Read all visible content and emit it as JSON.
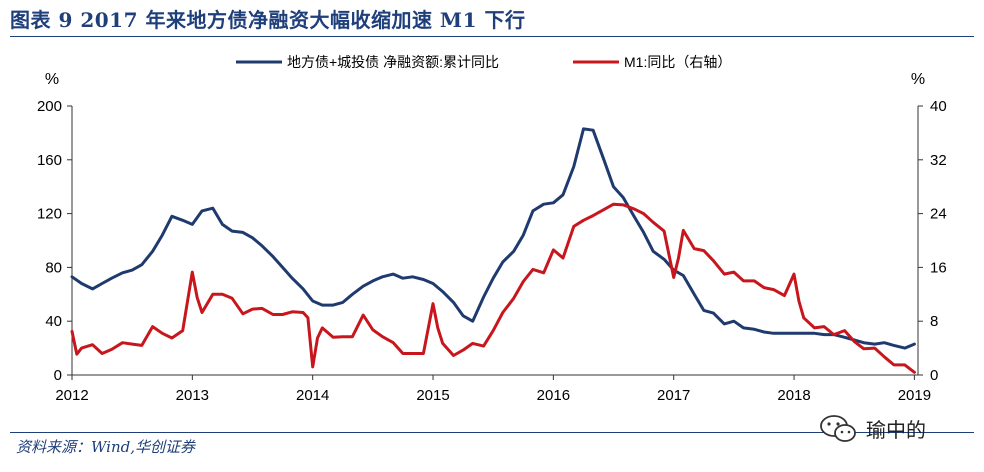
{
  "header": {
    "title": "图表 9   2017 年来地方债净融资大幅收缩加速 M1 下行"
  },
  "footer": {
    "source": "资料来源：Wind,华创证券",
    "watermark_text": "瑜中的"
  },
  "chart_data": {
    "type": "line",
    "title": "图表 9   2017 年来地方债净融资大幅收缩加速 M1 下行",
    "left_unit": "%",
    "right_unit": "%",
    "x_range": [
      2012,
      2019.03
    ],
    "x_ticks": [
      "2012",
      "2013",
      "2014",
      "2015",
      "2016",
      "2017",
      "2018",
      "2019"
    ],
    "y_left": {
      "ticks": [
        "0",
        "40",
        "80",
        "120",
        "160",
        "200"
      ],
      "lim": [
        0,
        200
      ]
    },
    "y_right": {
      "ticks": [
        "0",
        "8",
        "16",
        "24",
        "32",
        "40"
      ],
      "lim": [
        0,
        40
      ]
    },
    "legend_position": "top",
    "series": [
      {
        "name": "地方债+城投债 净融资额:累计同比",
        "color": "#1f3a6e",
        "axis": "left",
        "x": [
          2012.0,
          2012.08,
          2012.17,
          2012.25,
          2012.33,
          2012.42,
          2012.5,
          2012.58,
          2012.67,
          2012.75,
          2012.83,
          2012.92,
          2013.0,
          2013.08,
          2013.17,
          2013.25,
          2013.33,
          2013.42,
          2013.5,
          2013.58,
          2013.67,
          2013.75,
          2013.83,
          2013.92,
          2014.0,
          2014.08,
          2014.17,
          2014.25,
          2014.33,
          2014.42,
          2014.5,
          2014.58,
          2014.67,
          2014.75,
          2014.83,
          2014.92,
          2015.0,
          2015.08,
          2015.17,
          2015.25,
          2015.33,
          2015.42,
          2015.5,
          2015.58,
          2015.67,
          2015.75,
          2015.83,
          2015.92,
          2016.0,
          2016.08,
          2016.17,
          2016.25,
          2016.33,
          2016.42,
          2016.5,
          2016.58,
          2016.67,
          2016.75,
          2016.83,
          2016.92,
          2017.0,
          2017.08,
          2017.17,
          2017.25,
          2017.33,
          2017.42,
          2017.5,
          2017.58,
          2017.67,
          2017.75,
          2017.83,
          2017.92,
          2018.0,
          2018.08,
          2018.17,
          2018.25,
          2018.33,
          2018.42,
          2018.5,
          2018.58,
          2018.67,
          2018.75,
          2018.83,
          2018.92,
          2019.0
        ],
        "values": [
          73,
          68,
          64,
          68,
          72,
          76,
          78,
          82,
          92,
          104,
          118,
          115,
          112,
          122,
          124,
          112,
          107,
          106,
          102,
          96,
          88,
          80,
          72,
          64,
          55,
          52,
          52,
          54,
          60,
          66,
          70,
          73,
          75,
          72,
          73,
          71,
          68,
          62,
          54,
          44,
          40,
          58,
          72,
          84,
          92,
          104,
          122,
          127,
          128,
          134,
          155,
          183,
          182,
          160,
          140,
          132,
          118,
          106,
          92,
          86,
          78,
          74,
          60,
          48,
          46,
          38,
          40,
          35,
          34,
          32,
          31,
          31,
          31,
          31,
          31,
          30,
          30,
          28,
          26,
          24,
          23,
          24,
          22,
          20,
          23
        ]
      },
      {
        "name": "M1:同比（右轴）",
        "color": "#c8161d",
        "axis": "right",
        "x": [
          2012.0,
          2012.04,
          2012.08,
          2012.17,
          2012.25,
          2012.33,
          2012.42,
          2012.5,
          2012.58,
          2012.67,
          2012.75,
          2012.83,
          2012.92,
          2013.0,
          2013.04,
          2013.08,
          2013.17,
          2013.25,
          2013.33,
          2013.42,
          2013.5,
          2013.58,
          2013.67,
          2013.75,
          2013.83,
          2013.92,
          2013.96,
          2014.0,
          2014.04,
          2014.08,
          2014.17,
          2014.25,
          2014.33,
          2014.42,
          2014.5,
          2014.58,
          2014.67,
          2014.75,
          2014.83,
          2014.92,
          2015.0,
          2015.04,
          2015.08,
          2015.17,
          2015.25,
          2015.33,
          2015.42,
          2015.5,
          2015.58,
          2015.67,
          2015.75,
          2015.83,
          2015.92,
          2016.0,
          2016.08,
          2016.17,
          2016.25,
          2016.33,
          2016.42,
          2016.5,
          2016.58,
          2016.67,
          2016.75,
          2016.83,
          2016.92,
          2017.0,
          2017.04,
          2017.08,
          2017.17,
          2017.25,
          2017.33,
          2017.42,
          2017.5,
          2017.58,
          2017.67,
          2017.75,
          2017.83,
          2017.92,
          2018.0,
          2018.04,
          2018.08,
          2018.17,
          2018.25,
          2018.33,
          2018.42,
          2018.5,
          2018.58,
          2018.67,
          2018.75,
          2018.83,
          2018.92,
          2019.0
        ],
        "values": [
          6.5,
          3.1,
          4.0,
          4.5,
          3.2,
          3.8,
          4.8,
          4.6,
          4.4,
          7.2,
          6.2,
          5.5,
          6.6,
          15.3,
          11.5,
          9.3,
          12.0,
          12.0,
          11.4,
          9.1,
          9.8,
          9.9,
          9.0,
          9.0,
          9.4,
          9.3,
          8.5,
          1.2,
          5.5,
          7.0,
          5.6,
          5.7,
          5.7,
          8.9,
          6.7,
          5.7,
          4.8,
          3.2,
          3.2,
          3.2,
          10.6,
          7.0,
          4.7,
          2.9,
          3.7,
          4.7,
          4.3,
          6.6,
          9.3,
          11.4,
          13.9,
          15.7,
          15.2,
          18.6,
          17.4,
          22.1,
          23.0,
          23.7,
          24.6,
          25.4,
          25.3,
          24.7,
          24.0,
          22.7,
          21.4,
          14.5,
          17.4,
          21.5,
          18.8,
          18.5,
          17.0,
          15.0,
          15.3,
          14.0,
          14.0,
          13.0,
          12.7,
          11.8,
          15.0,
          11.0,
          8.5,
          7.0,
          7.2,
          6.0,
          6.6,
          5.0,
          3.9,
          4.0,
          2.7,
          1.5,
          1.5,
          0.4
        ]
      }
    ]
  }
}
